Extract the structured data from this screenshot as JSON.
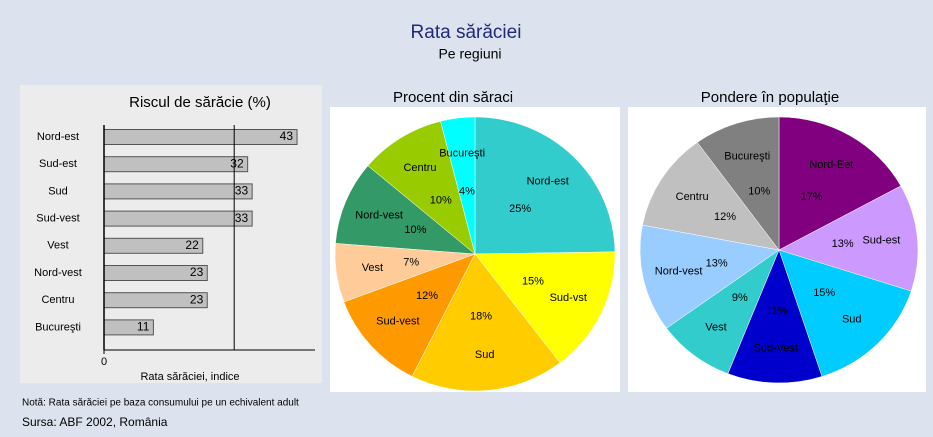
{
  "title": "Rata sărăciei",
  "subtitle": "Pe regiuni",
  "note": "Notă: Rata sărăciei pe baza consumului pe un echivalent adult",
  "source": "Sursa: ABF 2002, România",
  "chart_data": [
    {
      "type": "bar",
      "orientation": "horizontal",
      "title": "Riscul de sărăcie (%)",
      "xlabel": "Rata sărăciei, indice",
      "categories": [
        "Nord-est",
        "Sud-est",
        "Sud",
        "Sud-vest",
        "Vest",
        "Nord-vest",
        "Centru",
        "Bucureşti"
      ],
      "values": [
        43,
        32,
        33,
        33,
        22,
        23,
        23,
        11
      ],
      "color": "#c0c0c0",
      "xlim": [
        0,
        47
      ],
      "xticks": [
        0
      ],
      "reference_line": 29
    },
    {
      "type": "pie",
      "title": "Procent din săraci",
      "categories": [
        "Nord-est",
        "Sud-vst",
        "Sud",
        "Sud-vest",
        "Vest",
        "Nord-vest",
        "Centru",
        "Bucureşti"
      ],
      "values": [
        25,
        15,
        18,
        12,
        7,
        10,
        10,
        4
      ],
      "value_labels": [
        "25%",
        "15%",
        "18%",
        "12%",
        "7%",
        "10%",
        "10%",
        "4%"
      ],
      "colors": [
        "#33cccc",
        "#ffff00",
        "#ffcc00",
        "#ff9900",
        "#ffcc99",
        "#339966",
        "#99cc00",
        "#00ffff"
      ]
    },
    {
      "type": "pie",
      "title": "Pondere în populaţie",
      "categories": [
        "Nord-Eet",
        "Sud-est",
        "Sud",
        "Sud-Vest",
        "Vest",
        "Nord-vest",
        "Centru",
        "Bucureşti"
      ],
      "values": [
        17,
        13,
        15,
        11,
        9,
        13,
        12,
        10
      ],
      "value_labels": [
        "17%",
        "13%",
        "15%",
        "11%",
        "9%",
        "13%",
        "12%",
        "10%"
      ],
      "colors": [
        "#800080",
        "#cc99ff",
        "#00ccff",
        "#0000cc",
        "#33cccc",
        "#99ccff",
        "#c0c0c0",
        "#808080"
      ]
    }
  ]
}
